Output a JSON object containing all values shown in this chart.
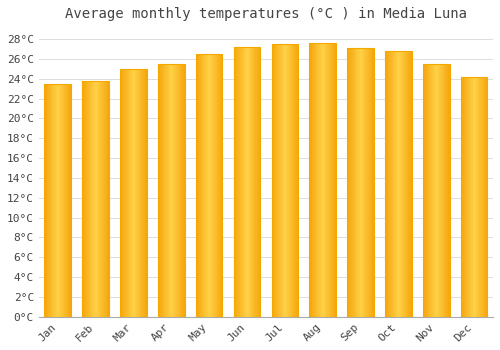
{
  "title": "Average monthly temperatures (°C ) in Media Luna",
  "months": [
    "Jan",
    "Feb",
    "Mar",
    "Apr",
    "May",
    "Jun",
    "Jul",
    "Aug",
    "Sep",
    "Oct",
    "Nov",
    "Dec"
  ],
  "values": [
    23.5,
    23.8,
    25.0,
    25.5,
    26.5,
    27.2,
    27.5,
    27.6,
    27.1,
    26.8,
    25.5,
    24.2
  ],
  "bar_color_center": "#FFD060",
  "bar_color_edge": "#F5A800",
  "background_color": "#FFFFFF",
  "grid_color": "#DDDDDD",
  "text_color": "#444444",
  "ylim": [
    0,
    29
  ],
  "ytick_step": 2,
  "title_fontsize": 10,
  "tick_fontsize": 8,
  "figsize": [
    5.0,
    3.5
  ],
  "dpi": 100
}
